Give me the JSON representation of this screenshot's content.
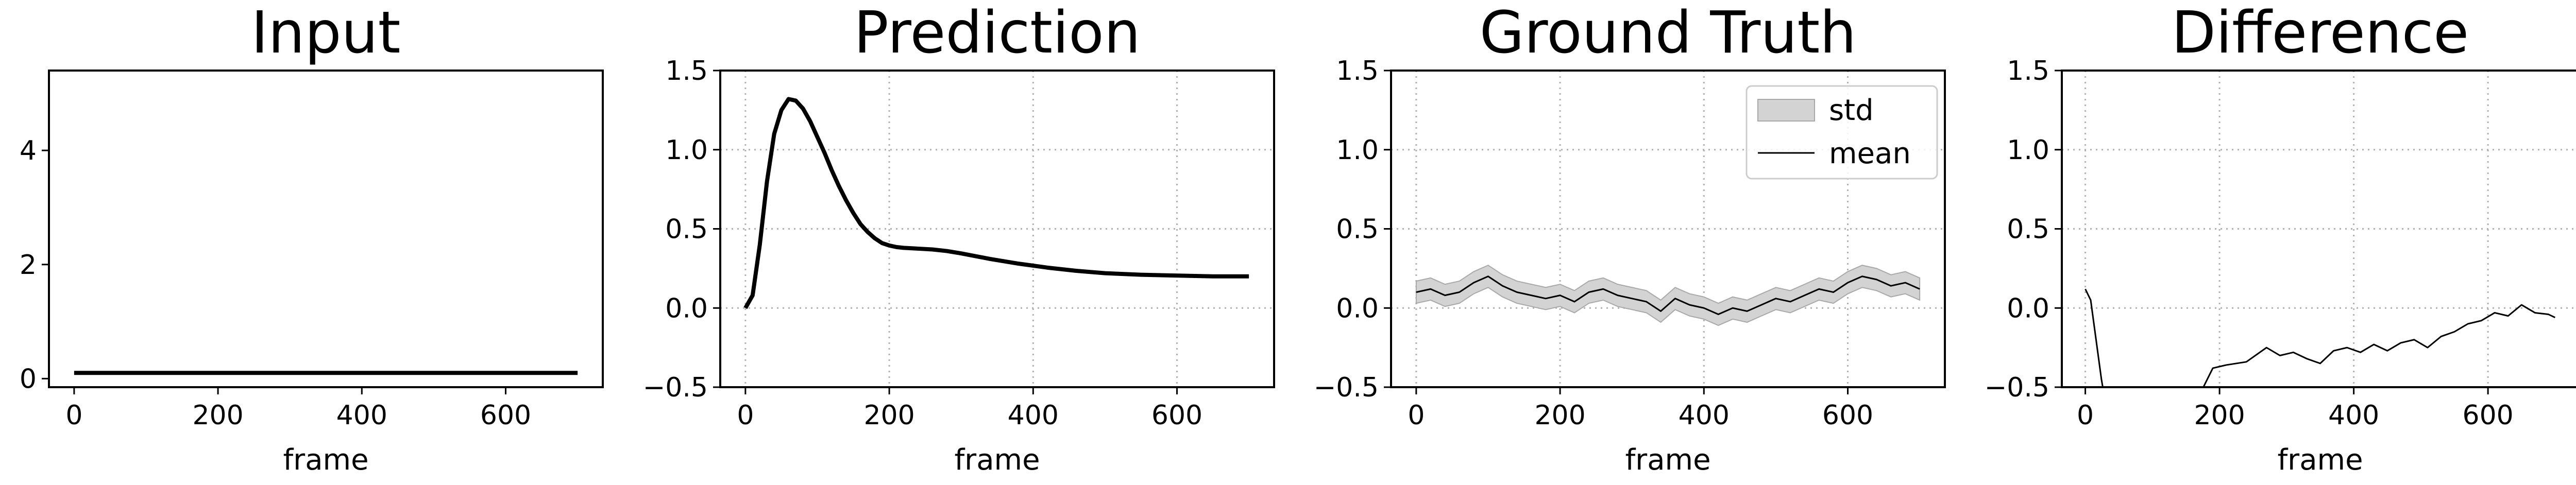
{
  "chart_data": [
    {
      "type": "line",
      "title": "Input",
      "xlabel": "frame",
      "ylabel": "",
      "xlim": [
        -35,
        735
      ],
      "ylim": [
        -0.15,
        5.4
      ],
      "xticks": [
        0,
        200,
        400,
        600
      ],
      "yticks": [
        0,
        2,
        4
      ],
      "grid": false,
      "series": [
        {
          "x": [
            0,
            700
          ],
          "y": [
            0.1,
            0.1
          ],
          "color": "#000000"
        }
      ]
    },
    {
      "type": "line",
      "title": "Prediction",
      "xlabel": "frame",
      "ylabel": "",
      "xlim": [
        -35,
        735
      ],
      "ylim": [
        -0.5,
        1.5
      ],
      "xticks": [
        0,
        200,
        400,
        600
      ],
      "yticks": [
        "−0.5",
        "0.0",
        "0.5",
        "1.0",
        "1.5"
      ],
      "grid": true,
      "series": [
        {
          "x": [
            0,
            10,
            20,
            30,
            40,
            50,
            60,
            70,
            80,
            90,
            100,
            110,
            120,
            130,
            140,
            150,
            160,
            170,
            180,
            190,
            200,
            210,
            220,
            240,
            260,
            280,
            300,
            340,
            380,
            420,
            460,
            500,
            550,
            600,
            650,
            700
          ],
          "y": [
            0.0,
            0.08,
            0.4,
            0.8,
            1.1,
            1.25,
            1.32,
            1.31,
            1.26,
            1.18,
            1.08,
            0.98,
            0.87,
            0.77,
            0.68,
            0.6,
            0.53,
            0.48,
            0.44,
            0.41,
            0.395,
            0.385,
            0.38,
            0.375,
            0.37,
            0.36,
            0.345,
            0.31,
            0.28,
            0.255,
            0.235,
            0.22,
            0.21,
            0.205,
            0.2,
            0.2
          ],
          "color": "#000000"
        }
      ]
    },
    {
      "type": "area",
      "title": "Ground Truth",
      "xlabel": "frame",
      "ylabel": "",
      "xlim": [
        -35,
        735
      ],
      "ylim": [
        -0.5,
        1.5
      ],
      "xticks": [
        0,
        200,
        400,
        600
      ],
      "yticks": [
        "−0.5",
        "0.0",
        "0.5",
        "1.0",
        "1.5"
      ],
      "grid": true,
      "legend": {
        "position": "top-right",
        "entries": [
          "std",
          "mean"
        ]
      },
      "series": [
        {
          "name": "mean",
          "x": [
            0,
            20,
            40,
            60,
            80,
            100,
            120,
            140,
            160,
            180,
            200,
            220,
            240,
            260,
            280,
            300,
            320,
            340,
            360,
            380,
            400,
            420,
            440,
            460,
            480,
            500,
            520,
            540,
            560,
            580,
            600,
            620,
            640,
            660,
            680,
            700
          ],
          "y": [
            0.1,
            0.12,
            0.08,
            0.1,
            0.16,
            0.2,
            0.14,
            0.1,
            0.08,
            0.06,
            0.08,
            0.04,
            0.1,
            0.12,
            0.08,
            0.06,
            0.04,
            -0.02,
            0.06,
            0.02,
            0.0,
            -0.04,
            0.0,
            -0.02,
            0.02,
            0.06,
            0.04,
            0.08,
            0.12,
            0.1,
            0.16,
            0.2,
            0.18,
            0.14,
            0.16,
            0.12
          ],
          "color": "#000000"
        },
        {
          "name": "std",
          "x": [
            0,
            20,
            40,
            60,
            80,
            100,
            120,
            140,
            160,
            180,
            200,
            220,
            240,
            260,
            280,
            300,
            320,
            340,
            360,
            380,
            400,
            420,
            440,
            460,
            480,
            500,
            520,
            540,
            560,
            580,
            600,
            620,
            640,
            660,
            680,
            700
          ],
          "spread": 0.07,
          "color": "#d3d3d3"
        }
      ]
    },
    {
      "type": "line",
      "title": "Difference",
      "xlabel": "frame",
      "ylabel": "",
      "xlim": [
        -35,
        735
      ],
      "ylim": [
        -0.5,
        1.5
      ],
      "xticks": [
        0,
        200,
        400,
        600
      ],
      "yticks": [
        "−0.5",
        "0.0",
        "0.5",
        "1.0",
        "1.5"
      ],
      "grid": true,
      "series": [
        {
          "x": [
            0,
            8,
            16,
            24,
            28,
            170,
            190,
            210,
            240,
            270,
            290,
            310,
            330,
            350,
            370,
            390,
            410,
            430,
            450,
            470,
            490,
            510,
            530,
            550,
            570,
            590,
            610,
            630,
            650,
            670,
            690,
            700
          ],
          "y": [
            0.12,
            0.05,
            -0.2,
            -0.45,
            -0.55,
            -0.55,
            -0.38,
            -0.36,
            -0.34,
            -0.25,
            -0.3,
            -0.28,
            -0.32,
            -0.35,
            -0.27,
            -0.25,
            -0.28,
            -0.23,
            -0.27,
            -0.22,
            -0.2,
            -0.25,
            -0.18,
            -0.15,
            -0.1,
            -0.08,
            -0.03,
            -0.05,
            0.02,
            -0.03,
            -0.04,
            -0.06
          ],
          "color": "#000000"
        }
      ]
    }
  ]
}
